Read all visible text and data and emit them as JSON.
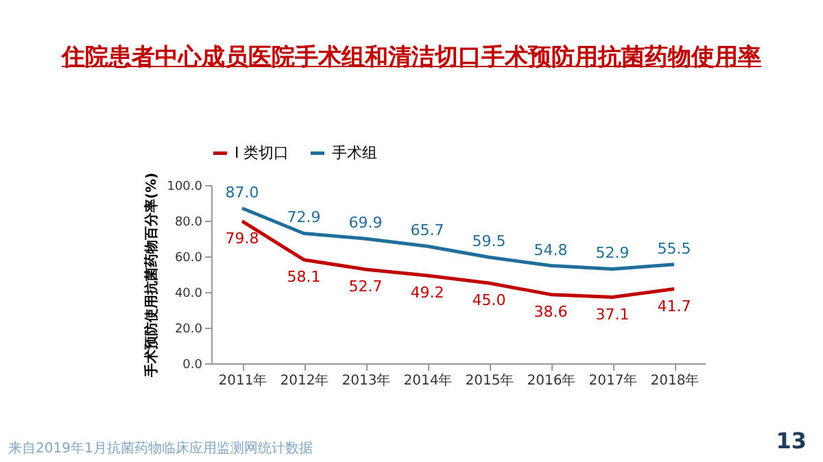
{
  "chart_data": {
    "type": "line",
    "title": "住院患者中心成员医院手术组和清洁切口手术预防用抗菌药物使用率",
    "ylabel": "手术预防使用抗菌药物百分率(%)",
    "categories": [
      "2011年",
      "2012年",
      "2013年",
      "2014年",
      "2015年",
      "2016年",
      "2017年",
      "2018年"
    ],
    "series": [
      {
        "name": "I 类切口",
        "color": "#c00000",
        "values": [
          79.8,
          58.1,
          52.7,
          49.2,
          45.0,
          38.6,
          37.1,
          41.7
        ],
        "value_labels": [
          "79.8",
          "58.1",
          "52.7",
          "49.2",
          "45.0",
          "38.6",
          "37.1",
          "41.7"
        ]
      },
      {
        "name": "手术组",
        "color": "#1f6e9c",
        "values": [
          87.0,
          72.9,
          69.9,
          65.7,
          59.5,
          54.8,
          52.9,
          55.5
        ],
        "value_labels": [
          "87.0",
          "72.9",
          "69.9",
          "65.7",
          "59.5",
          "54.8",
          "52.9",
          "55.5"
        ]
      }
    ],
    "ylim": [
      0,
      100
    ],
    "yticks": [
      {
        "value": 0,
        "label": "0.0"
      },
      {
        "value": 20,
        "label": "20.0"
      },
      {
        "value": 40,
        "label": "40.0"
      },
      {
        "value": 60,
        "label": "60.0"
      },
      {
        "value": 80,
        "label": "80.0"
      },
      {
        "value": 100,
        "label": "100.0"
      }
    ],
    "grid": false,
    "legend": "top",
    "marker": "none",
    "line_style": "solid",
    "annotations": [
      "来自2019年1月抗菌药物临床应用监测网统计数据",
      "13"
    ]
  }
}
